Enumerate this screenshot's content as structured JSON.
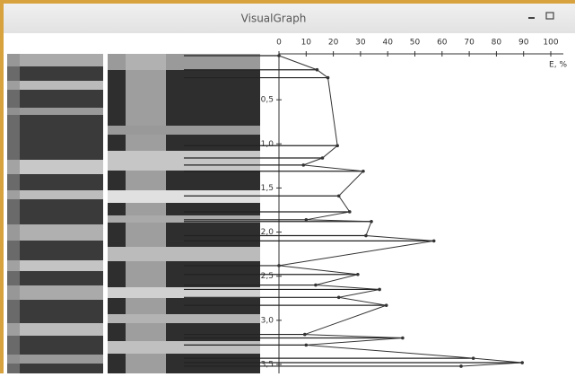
{
  "window": {
    "title": "VisualGraph"
  },
  "chart_data": {
    "type": "line",
    "x_label": "E, %",
    "depth": [
      0,
      0.16,
      0.25,
      1.02,
      1.16,
      1.24,
      1.31,
      1.59,
      1.77,
      1.86,
      1.88,
      2.04,
      2.1,
      2.38,
      2.48,
      2.6,
      2.65,
      2.74,
      2.83,
      3.16,
      3.2,
      3.28,
      3.43,
      3.48,
      3.52
    ],
    "values": [
      0,
      14,
      18,
      21.5,
      16,
      9,
      31,
      22,
      26,
      10,
      34,
      32,
      57,
      0,
      29,
      13.5,
      37,
      22,
      39.5,
      9.5,
      45.5,
      10,
      71.5,
      89.5,
      67
    ],
    "color": "#333333",
    "xlim": [
      0,
      100
    ],
    "xticks": [
      0,
      10,
      20,
      30,
      40,
      50,
      60,
      70,
      80,
      90,
      100
    ],
    "ylim": [
      0,
      3.6
    ],
    "yticks": [
      {
        "value": 0.5,
        "label": "0,5"
      },
      {
        "value": 1.0,
        "label": "1,0"
      },
      {
        "value": 1.5,
        "label": "1,5"
      },
      {
        "value": 2.0,
        "label": "2,0"
      },
      {
        "value": 2.5,
        "label": "2,5"
      },
      {
        "value": 3.0,
        "label": "3,0"
      },
      {
        "value": 3.5,
        "label": "3,5"
      }
    ]
  }
}
